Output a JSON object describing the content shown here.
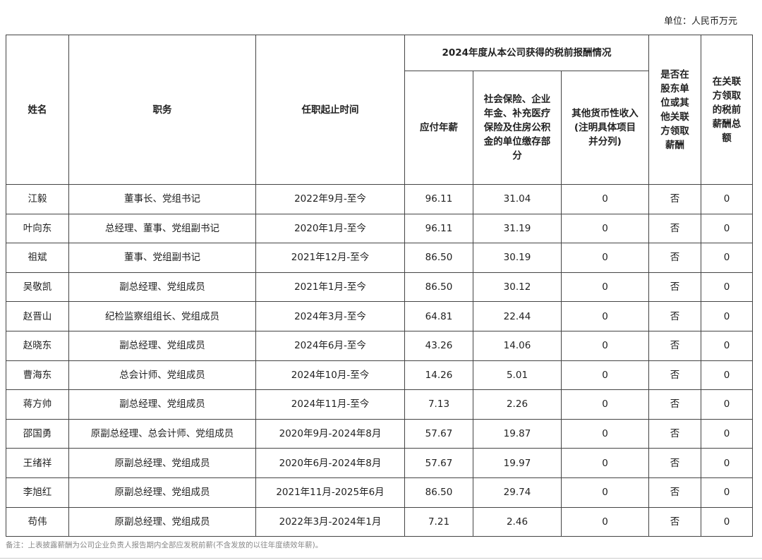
{
  "unit": "单位：人民币万元",
  "headers": {
    "name": "姓名",
    "position": "职务",
    "term": "任职起止时间",
    "group": "2024年度从本公司获得的税前报酬情况",
    "salary": "应付年薪",
    "insurance": "社会保险、企业年金、补充医疗保险及住房公积金的单位缴存部分",
    "other": "其他货币性收入(注明具体项目并分列)",
    "related_flag": "是否在股东单位或其他关联方领取薪酬",
    "related_total": "在关联方领取的税前薪酬总额"
  },
  "rows": [
    [
      "江毅",
      "董事长、党组书记",
      "2022年9月-至今",
      "96.11",
      "31.04",
      "0",
      "否",
      "0"
    ],
    [
      "叶向东",
      "总经理、董事、党组副书记",
      "2020年1月-至今",
      "96.11",
      "31.19",
      "0",
      "否",
      "0"
    ],
    [
      "祖斌",
      "董事、党组副书记",
      "2021年12月-至今",
      "86.50",
      "30.19",
      "0",
      "否",
      "0"
    ],
    [
      "吴敬凯",
      "副总经理、党组成员",
      "2021年1月-至今",
      "86.50",
      "30.12",
      "0",
      "否",
      "0"
    ],
    [
      "赵晋山",
      "纪检监察组组长、党组成员",
      "2024年3月-至今",
      "64.81",
      "22.44",
      "0",
      "否",
      "0"
    ],
    [
      "赵晓东",
      "副总经理、党组成员",
      "2024年6月-至今",
      "43.26",
      "14.06",
      "0",
      "否",
      "0"
    ],
    [
      "曹海东",
      "总会计师、党组成员",
      "2024年10月-至今",
      "14.26",
      "5.01",
      "0",
      "否",
      "0"
    ],
    [
      "蒋方帅",
      "副总经理、党组成员",
      "2024年11月-至今",
      "7.13",
      "2.26",
      "0",
      "否",
      "0"
    ],
    [
      "邵国勇",
      "原副总经理、总会计师、党组成员",
      "2020年9月-2024年8月",
      "57.67",
      "19.87",
      "0",
      "否",
      "0"
    ],
    [
      "王绪祥",
      "原副总经理、党组成员",
      "2020年6月-2024年8月",
      "57.67",
      "19.97",
      "0",
      "否",
      "0"
    ],
    [
      "李旭红",
      "原副总经理、党组成员",
      "2021年11月-2025年6月",
      "86.50",
      "29.74",
      "0",
      "否",
      "0"
    ],
    [
      "苟伟",
      "原副总经理、党组成员",
      "2022年3月-2024年1月",
      "7.21",
      "2.46",
      "0",
      "否",
      "0"
    ]
  ],
  "note": "备注：上表披露薪酬为公司企业负责人报告期内全部应发税前薪(不含发放的以往年度绩效年薪)。"
}
